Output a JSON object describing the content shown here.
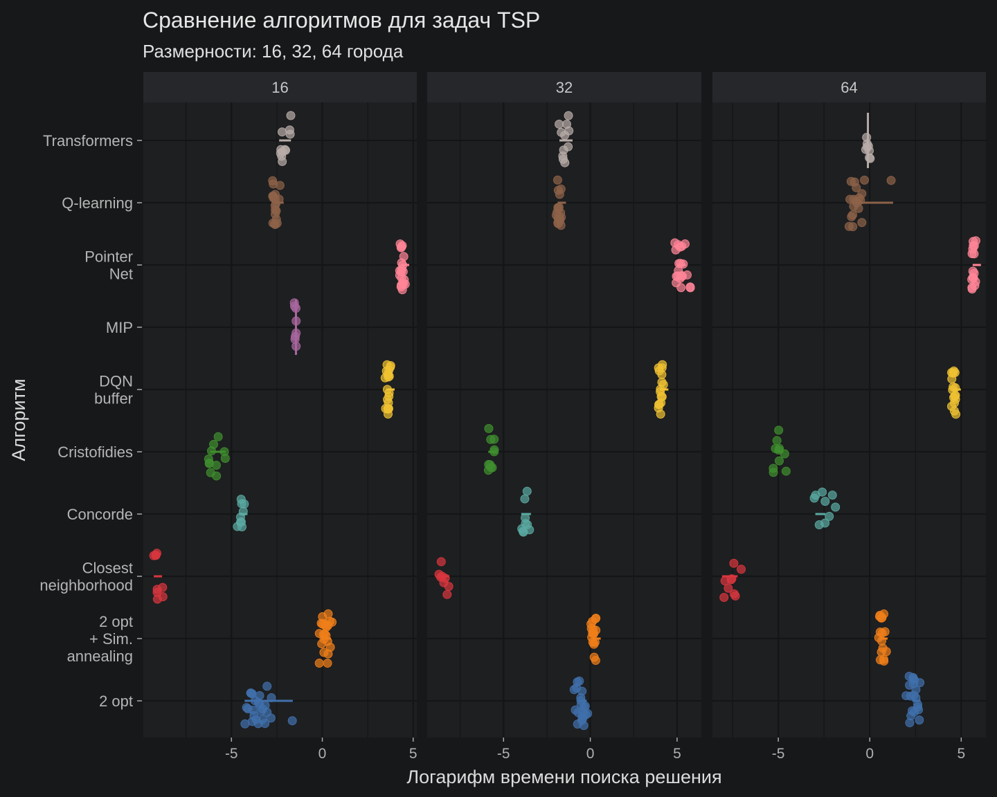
{
  "chart_data": {
    "type": "scatter",
    "title": "Сравнение алгоритмов для задач TSP",
    "subtitle": "Размерности: 16, 32, 64 города",
    "xlabel": "Логарифм времени поиска решения",
    "ylabel": "Алгоритм",
    "grid": true,
    "legend": "none",
    "categories": [
      {
        "label": "Transformers",
        "color": "#b8aca8"
      },
      {
        "label": "Q-learning",
        "color": "#8d6248"
      },
      {
        "label": "Pointer\nNet",
        "color": "#ff8597"
      },
      {
        "label": "MIP",
        "color": "#a8679e"
      },
      {
        "label": "DQN\nbuffer",
        "color": "#f0c232"
      },
      {
        "label": "Cristofidies",
        "color": "#3f8f2f"
      },
      {
        "label": "Concorde",
        "color": "#5aaaa2"
      },
      {
        "label": "Closest\nneighborhood",
        "color": "#d9363e"
      },
      {
        "label": "2 opt\n+ Sim.\nannealing",
        "color": "#f07f1a"
      },
      {
        "label": "2 opt",
        "color": "#4070ac"
      }
    ],
    "facets": [
      {
        "label": "16",
        "xlim": [
          -9.85,
          5.2
        ],
        "xticks": [
          -5,
          0,
          5
        ],
        "groups": {
          "Transformers": {
            "points": [
              -1.8,
              -1.75,
              -2.2,
              -2.25,
              -2.3,
              -2.3,
              -2.2,
              -1.8,
              -1.95,
              -2.05,
              -2.25
            ],
            "summary": [
              -2.3,
              -1.8
            ]
          },
          "Q-learning": {
            "points": [
              -2.7,
              -2.65,
              -2.6,
              -2.55,
              -2.7,
              -2.5,
              -2.3,
              -2.35,
              -2.6,
              -2.65,
              -2.7,
              -2.6,
              -2.55,
              -2.65,
              -2.7,
              -2.6,
              -2.5,
              -2.65,
              -2.7,
              -2.6
            ],
            "summary": [
              -2.6,
              -2.2
            ]
          },
          "Pointer\nNet": {
            "points": [
              4.3,
              4.35,
              4.4,
              4.45,
              4.4,
              4.35,
              4.3,
              4.4,
              4.5,
              4.45,
              4.35,
              4.3,
              4.4,
              4.45,
              4.4,
              4.35,
              4.3,
              4.4,
              4.5,
              4.4
            ],
            "summary": [
              4.4,
              4.4
            ]
          },
          "MIP": {
            "points": [
              -1.5,
              -1.45,
              -1.4,
              -1.5,
              -1.45,
              -1.4,
              -1.5,
              -1.45
            ],
            "summary": [
              -1.45,
              -1.45
            ],
            "vertical": true
          },
          "DQN\nbuffer": {
            "points": [
              3.5,
              3.6,
              3.7,
              3.55,
              3.65,
              3.5,
              3.6,
              3.7,
              3.55,
              3.65,
              3.6,
              3.5,
              3.7,
              3.6,
              3.55,
              3.65,
              3.6,
              3.5,
              3.7,
              3.6
            ],
            "summary": [
              3.6,
              3.6
            ]
          },
          "Cristofidies": {
            "points": [
              -6.0,
              -6.2,
              -6.2,
              -5.7,
              -5.9,
              -5.4,
              -6.1,
              -6.2,
              -5.4,
              -5.9,
              -6.05
            ],
            "summary": [
              -6.1,
              -5.4
            ]
          },
          "Concorde": {
            "points": [
              -4.3,
              -4.5,
              -4.5,
              -4.4,
              -4.6,
              -4.3,
              -4.5,
              -4.4,
              -4.45
            ],
            "summary": [
              -4.5,
              -4.2
            ]
          },
          "Closest\nneighborhood": {
            "points": [
              -9.2,
              -9.15,
              -8.8,
              -9.0,
              -9.1,
              -8.85,
              -9.05,
              -9.1,
              -9.2
            ],
            "summary": [
              -9.2,
              -8.9
            ]
          },
          "2 opt\n+ Sim.\nannealing": {
            "points": [
              -0.1,
              0.0,
              0.1,
              0.2,
              0.3,
              0.4,
              -0.15,
              0.05,
              0.25,
              0.35,
              0.15,
              0.0,
              0.6,
              0.2,
              0.3,
              -0.1,
              0.1,
              0.4,
              0.2,
              0.25,
              0.05,
              0.15
            ],
            "summary": [
              0.0,
              0.4
            ]
          },
          "2 opt": {
            "points": [
              -4.3,
              -4.1,
              -3.9,
              -3.7,
              -3.5,
              -3.3,
              -3.1,
              -2.9,
              -2.8,
              -3.6,
              -3.8,
              -4.0,
              -3.4,
              -3.2,
              -3.0,
              -3.7,
              -3.9,
              -4.2,
              -3.5,
              -3.3,
              -3.6,
              -3.8,
              -3.4,
              -3.1,
              -1.7
            ],
            "summary": [
              -4.2,
              -1.7
            ]
          }
        }
      },
      {
        "label": "32",
        "xlim": [
          -9.4,
          6.4
        ],
        "xticks": [
          -5,
          0,
          5
        ],
        "groups": {
          "Transformers": {
            "points": [
              -1.7,
              -1.5,
              -1.3,
              -1.2,
              -1.4,
              -1.6,
              -1.75,
              -1.5,
              -1.3,
              -1.2,
              -1.6
            ],
            "summary": [
              -1.7,
              -1.1
            ]
          },
          "Q-learning": {
            "points": [
              -1.9,
              -1.8,
              -1.7,
              -1.85,
              -1.75,
              -1.8,
              -1.9,
              -1.7,
              -1.8,
              -1.85,
              -1.75,
              -1.8,
              -1.9,
              -1.7,
              -1.8,
              -1.85,
              -1.75,
              -1.8
            ],
            "summary": [
              -1.8,
              -1.8
            ]
          },
          "Pointer\nNet": {
            "points": [
              4.9,
              5.0,
              5.1,
              5.2,
              5.3,
              5.5,
              5.7,
              5.8,
              5.0,
              5.1,
              5.2,
              5.4,
              4.95,
              5.05,
              5.15,
              5.3,
              5.6,
              5.0,
              5.1,
              5.25
            ],
            "summary": [
              5.1,
              5.3
            ]
          },
          "DQN\nbuffer": {
            "points": [
              4.0,
              4.1,
              4.15,
              4.05,
              4.1,
              4.0,
              4.15,
              4.1,
              4.05,
              4.1,
              4.0,
              4.1,
              4.15,
              4.05,
              4.1,
              4.1
            ],
            "summary": [
              4.1,
              4.1
            ]
          },
          "Cristofidies": {
            "points": [
              -5.8,
              -5.9,
              -5.6,
              -5.7,
              -5.5,
              -5.8,
              -5.9,
              -5.6,
              -5.7,
              -5.85
            ],
            "summary": [
              -5.8,
              -5.5
            ]
          },
          "Concorde": {
            "points": [
              -3.7,
              -3.6,
              -3.8,
              -3.9,
              -3.5,
              -4.0,
              -3.6,
              -3.7,
              -3.8
            ],
            "summary": [
              -3.9,
              -3.5
            ]
          },
          "Closest\nneighborhood": {
            "points": [
              -8.5,
              -8.3,
              -8.6,
              -8.7,
              -8.4,
              -8.6,
              -8.5,
              -8.2
            ],
            "summary": [
              -8.6,
              -8.2
            ]
          },
          "2 opt\n+ Sim.\nannealing": {
            "points": [
              0.1,
              0.2,
              0.3,
              0.15,
              0.25,
              0.2,
              0.1,
              0.3,
              0.2,
              0.15,
              0.25,
              0.2,
              0.1,
              0.3,
              0.2,
              0.25
            ],
            "summary": [
              0.2,
              0.2
            ]
          },
          "2 opt": {
            "points": [
              -0.9,
              -0.7,
              -0.5,
              -0.3,
              -0.2,
              -0.6,
              -0.8,
              -0.4,
              -0.5,
              -0.7,
              -0.3,
              -0.6,
              -0.5,
              -0.4,
              -0.8,
              -0.2,
              -0.5,
              -0.6,
              -0.4,
              -0.7
            ],
            "summary": [
              -0.6,
              -0.4
            ]
          }
        }
      },
      {
        "label": "64",
        "xlim": [
          -8.6,
          6.35
        ],
        "xticks": [
          -5,
          0,
          5
        ],
        "groups": {
          "Transformers": {
            "points": [
              -0.1,
              -0.15,
              -0.1,
              -0.05,
              -0.1,
              -0.15,
              -0.1,
              0.0
            ],
            "summary": [
              -0.1,
              -0.1
            ],
            "vertical": true
          },
          "Q-learning": {
            "points": [
              -1.1,
              -1.0,
              -0.9,
              -0.7,
              -0.5,
              -0.3,
              -1.05,
              -0.8,
              -0.6,
              -0.4,
              -1.0,
              -0.9,
              -0.7,
              -1.1,
              -0.5,
              -0.8,
              -0.95,
              -0.6,
              1.2
            ],
            "summary": [
              -0.9,
              1.2
            ]
          },
          "Pointer\nNet": {
            "points": [
              5.6,
              5.7,
              5.75,
              5.65,
              5.7,
              5.6,
              5.75,
              5.7,
              5.65,
              5.7,
              5.6,
              5.7,
              5.75,
              5.65,
              5.7,
              5.7
            ],
            "summary": [
              5.7,
              5.7
            ]
          },
          "DQN\nbuffer": {
            "points": [
              4.5,
              4.6,
              4.7,
              4.55,
              4.65,
              4.6,
              4.5,
              4.7,
              4.6,
              4.55,
              4.65,
              4.6,
              4.5,
              4.7,
              4.6,
              4.6
            ],
            "summary": [
              4.6,
              4.6
            ]
          },
          "Cristofidies": {
            "points": [
              -4.7,
              -4.9,
              -5.0,
              -5.1,
              -5.2,
              -5.3,
              -4.6,
              -5.0,
              -5.1,
              -4.9
            ],
            "summary": [
              -5.1,
              -4.8
            ]
          },
          "Concorde": {
            "points": [
              -2.9,
              -2.6,
              -2.0,
              -1.9,
              -2.4,
              -2.8,
              -2.5,
              -3.0,
              -2.2
            ],
            "summary": [
              -2.9,
              -2.5
            ]
          },
          "Closest\nneighborhood": {
            "points": [
              -7.9,
              -7.6,
              -7.4,
              -7.1,
              -7.8,
              -7.5,
              -8.0,
              -7.6,
              -7.3
            ],
            "summary": [
              -8.0,
              -7.3
            ]
          },
          "2 opt\n+ Sim.\nannealing": {
            "points": [
              0.5,
              0.6,
              0.7,
              0.8,
              0.9,
              0.55,
              0.65,
              0.75,
              0.6,
              0.7,
              0.5,
              0.8,
              0.65,
              0.7,
              0.6,
              0.75
            ],
            "summary": [
              0.6,
              0.7
            ]
          },
          "2 opt": {
            "points": [
              2.0,
              2.2,
              2.4,
              2.6,
              2.8,
              2.3,
              2.5,
              2.1,
              2.7,
              2.4,
              2.35,
              2.55,
              2.45,
              2.2,
              2.6,
              2.3,
              2.5,
              2.4,
              2.65,
              2.25
            ],
            "summary": [
              2.4,
              2.5
            ]
          }
        }
      }
    ]
  }
}
